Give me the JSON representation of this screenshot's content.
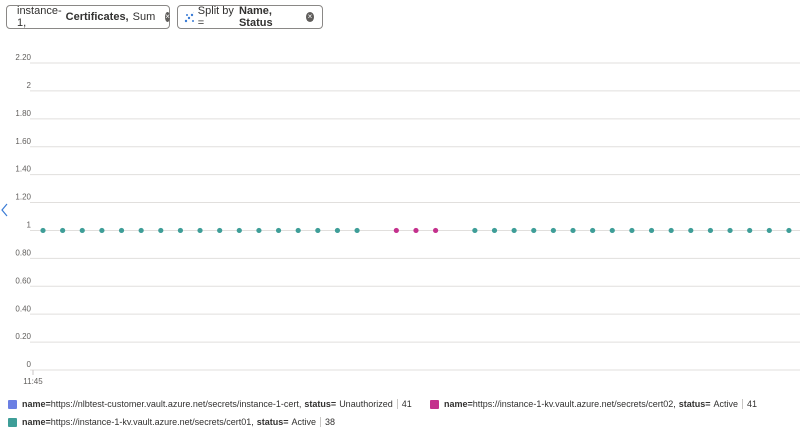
{
  "filters": {
    "resource": "instance-1,",
    "metric": "Certificates,",
    "aggregation": "Sum",
    "split_prefix": "Split by =",
    "split_value": "Name, Status"
  },
  "chart_data": {
    "type": "scatter",
    "categories": [
      "11:45",
      null,
      null,
      null,
      null,
      null,
      null,
      null,
      null,
      null,
      null,
      null,
      null,
      null,
      null,
      null,
      null,
      null,
      null,
      null,
      null,
      null,
      null,
      null,
      null,
      null,
      null,
      null,
      null,
      null,
      null,
      null,
      null,
      null,
      null,
      null,
      null,
      null,
      null,
      null
    ],
    "ylim": [
      0,
      2.2
    ],
    "yticks": [
      0,
      {
        "value": 0.2,
        "label": "0.20"
      },
      {
        "value": 0.4,
        "label": "0.40"
      },
      {
        "value": 0.6,
        "label": "0.60"
      },
      {
        "value": 0.8,
        "label": "0.80"
      },
      1,
      {
        "value": 1.2,
        "label": "1.20"
      },
      {
        "value": 1.4,
        "label": "1.40"
      },
      {
        "value": 1.6,
        "label": "1.60"
      },
      {
        "value": 1.8,
        "label": "1.80"
      },
      2,
      {
        "value": 2.2,
        "label": "2.20"
      }
    ],
    "grid": true,
    "legend_labels": {
      "name": "name=",
      "status": "status="
    },
    "separator": ",",
    "series": [
      {
        "name": "https://nlbtest-customer.vault.azure.net/secrets/instance-1-cert",
        "status": "Unauthorized",
        "total": 41,
        "color": "#6b7fe3",
        "values": [
          null,
          null,
          null,
          null,
          null,
          null,
          null,
          null,
          null,
          null,
          null,
          null,
          null,
          null,
          null,
          null,
          null,
          null,
          null,
          null,
          null,
          null,
          null,
          null,
          null,
          null,
          null,
          null,
          null,
          null,
          null,
          null,
          null,
          null,
          null,
          null,
          null,
          null,
          null,
          null
        ]
      },
      {
        "name": "https://instance-1-kv.vault.azure.net/secrets/cert02",
        "status": "Active",
        "total": 41,
        "color": "#c4318d",
        "values": [
          null,
          null,
          null,
          null,
          null,
          null,
          null,
          null,
          null,
          null,
          null,
          null,
          null,
          null,
          null,
          null,
          null,
          null,
          1,
          1,
          1,
          null,
          null,
          null,
          null,
          null,
          null,
          null,
          null,
          null,
          null,
          null,
          null,
          null,
          null,
          null,
          null,
          null,
          null,
          null
        ]
      },
      {
        "name": "https://instance-1-kv.vault.azure.net/secrets/cert01",
        "status": "Active",
        "total": 38,
        "color": "#3e9e98",
        "values": [
          1,
          1,
          1,
          1,
          1,
          1,
          1,
          1,
          1,
          1,
          1,
          1,
          1,
          1,
          1,
          1,
          1,
          null,
          null,
          null,
          null,
          null,
          1,
          1,
          1,
          1,
          1,
          1,
          1,
          1,
          1,
          1,
          1,
          1,
          1,
          1,
          1,
          1,
          1,
          1
        ]
      }
    ]
  }
}
